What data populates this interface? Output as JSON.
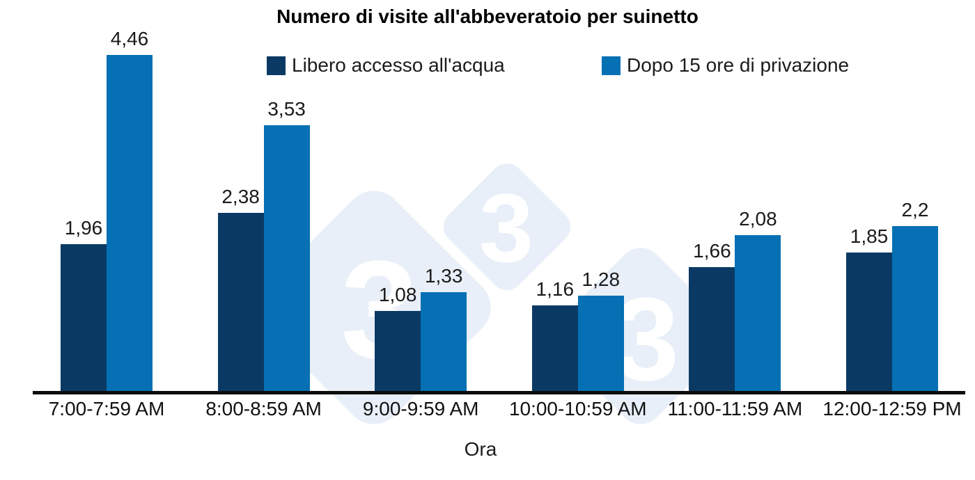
{
  "chart_data": {
    "type": "bar",
    "title": "Numero di visite all'abbeveratoio per suinetto",
    "xlabel": "Ora",
    "ylabel": "",
    "categories": [
      "7:00-7:59 AM",
      "8:00-8:59 AM",
      "9:00-9:59 AM",
      "10:00-10:59 AM",
      "11:00-11:59 AM",
      "12:00-12:59 PM"
    ],
    "series": [
      {
        "name": "Libero accesso all'acqua",
        "color": "#0a3a64",
        "values": [
          1.96,
          2.38,
          1.08,
          1.16,
          1.66,
          1.85
        ],
        "labels": [
          "1,96",
          "2,38",
          "1,08",
          "1,16",
          "1,66",
          "1,85"
        ]
      },
      {
        "name": "Dopo 15 ore di privazione",
        "color": "#0570b4",
        "values": [
          4.46,
          3.53,
          1.33,
          1.28,
          2.08,
          2.2
        ],
        "labels": [
          "4,46",
          "3,53",
          "1,33",
          "1,28",
          "2,08",
          "2,2"
        ]
      }
    ],
    "ylim": [
      0,
      4.6
    ],
    "grid": false,
    "y_axis_visible": false,
    "legend_position": "top",
    "decimal_separator": ","
  },
  "watermark": {
    "glyph": "3",
    "diamond_color": "#e9eff8",
    "glyph_color": "#ffffff"
  }
}
